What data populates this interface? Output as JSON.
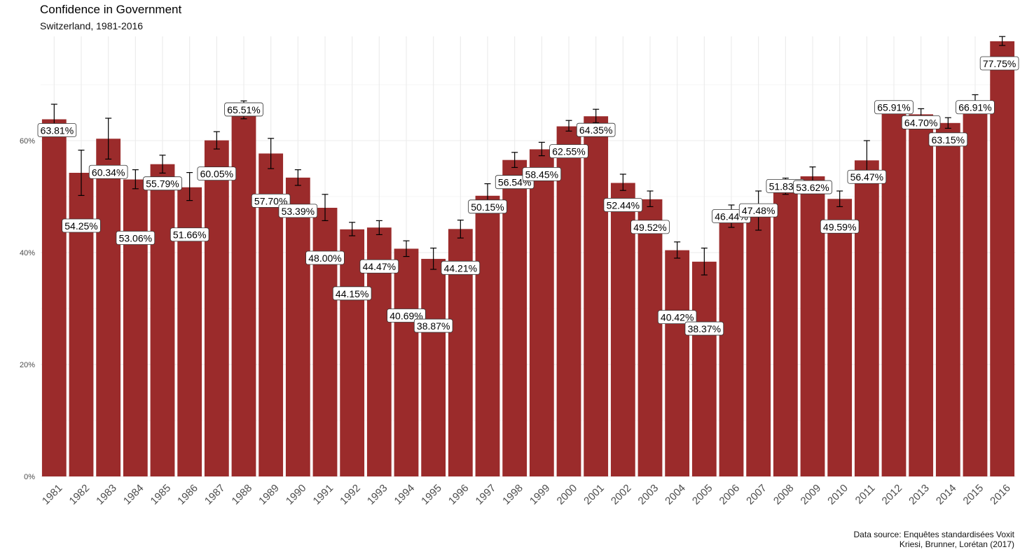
{
  "chart_data": {
    "type": "bar",
    "title": "Confidence in Government",
    "subtitle": "Switzerland, 1981-2016",
    "xlabel": "",
    "ylabel": "",
    "ylim": [
      0,
      78
    ],
    "yticks": [
      0,
      20,
      40,
      60
    ],
    "ytick_labels": [
      "0%",
      "20%",
      "40%",
      "60%"
    ],
    "grid": true,
    "bar_color": "#9b2b2b",
    "categories": [
      "1981",
      "1982",
      "1983",
      "1984",
      "1985",
      "1986",
      "1987",
      "1988",
      "1989",
      "1990",
      "1991",
      "1992",
      "1993",
      "1994",
      "1995",
      "1996",
      "1997",
      "1998",
      "1999",
      "2000",
      "2001",
      "2002",
      "2003",
      "2004",
      "2005",
      "2006",
      "2007",
      "2008",
      "2009",
      "2010",
      "2011",
      "2012",
      "2013",
      "2014",
      "2015",
      "2016"
    ],
    "values": [
      63.81,
      54.25,
      60.34,
      53.06,
      55.79,
      51.66,
      60.05,
      65.51,
      57.7,
      53.39,
      48.0,
      44.15,
      44.47,
      40.69,
      38.87,
      44.21,
      50.15,
      56.54,
      58.45,
      62.55,
      64.35,
      52.44,
      49.52,
      40.42,
      38.37,
      46.44,
      47.48,
      51.83,
      53.62,
      49.59,
      56.47,
      65.91,
      64.7,
      63.15,
      66.91,
      77.75
    ],
    "value_labels": [
      "63.81%",
      "54.25%",
      "60.34%",
      "53.06%",
      "55.79%",
      "51.66%",
      "60.05%",
      "65.51%",
      "57.70%",
      "53.39%",
      "48.00%",
      "44.15%",
      "44.47%",
      "40.69%",
      "38.87%",
      "44.21%",
      "50.15%",
      "56.54%",
      "58.45%",
      "62.55%",
      "64.35%",
      "52.44%",
      "49.52%",
      "40.42%",
      "38.37%",
      "46.44%",
      "47.48%",
      "51.83%",
      "53.62%",
      "49.59%",
      "56.47%",
      "65.91%",
      "64.70%",
      "63.15%",
      "66.91%",
      "77.75%"
    ],
    "error_low": [
      61.1,
      50.2,
      56.7,
      51.4,
      54.2,
      49.3,
      58.5,
      63.9,
      55.0,
      52.0,
      45.7,
      43.0,
      43.2,
      39.3,
      37.0,
      42.6,
      48.2,
      55.2,
      57.3,
      61.7,
      63.2,
      51.1,
      48.2,
      39.0,
      36.0,
      44.5,
      44.0,
      50.4,
      52.0,
      48.2,
      52.9,
      65.1,
      63.7,
      62.2,
      65.7,
      77.0
    ],
    "error_high": [
      66.5,
      58.3,
      64.0,
      54.8,
      57.4,
      54.3,
      61.6,
      67.1,
      60.4,
      54.8,
      50.4,
      45.4,
      45.7,
      42.1,
      40.8,
      45.8,
      52.3,
      57.9,
      59.7,
      63.6,
      65.6,
      54.0,
      51.0,
      41.9,
      40.8,
      48.5,
      51.0,
      53.3,
      55.3,
      51.0,
      60.0,
      66.8,
      65.7,
      64.1,
      68.2,
      78.6
    ],
    "caption": [
      "Data source: Enquêtes standardisées Voxit",
      "Kriesi, Brunner, Lorétan (2017)"
    ]
  }
}
